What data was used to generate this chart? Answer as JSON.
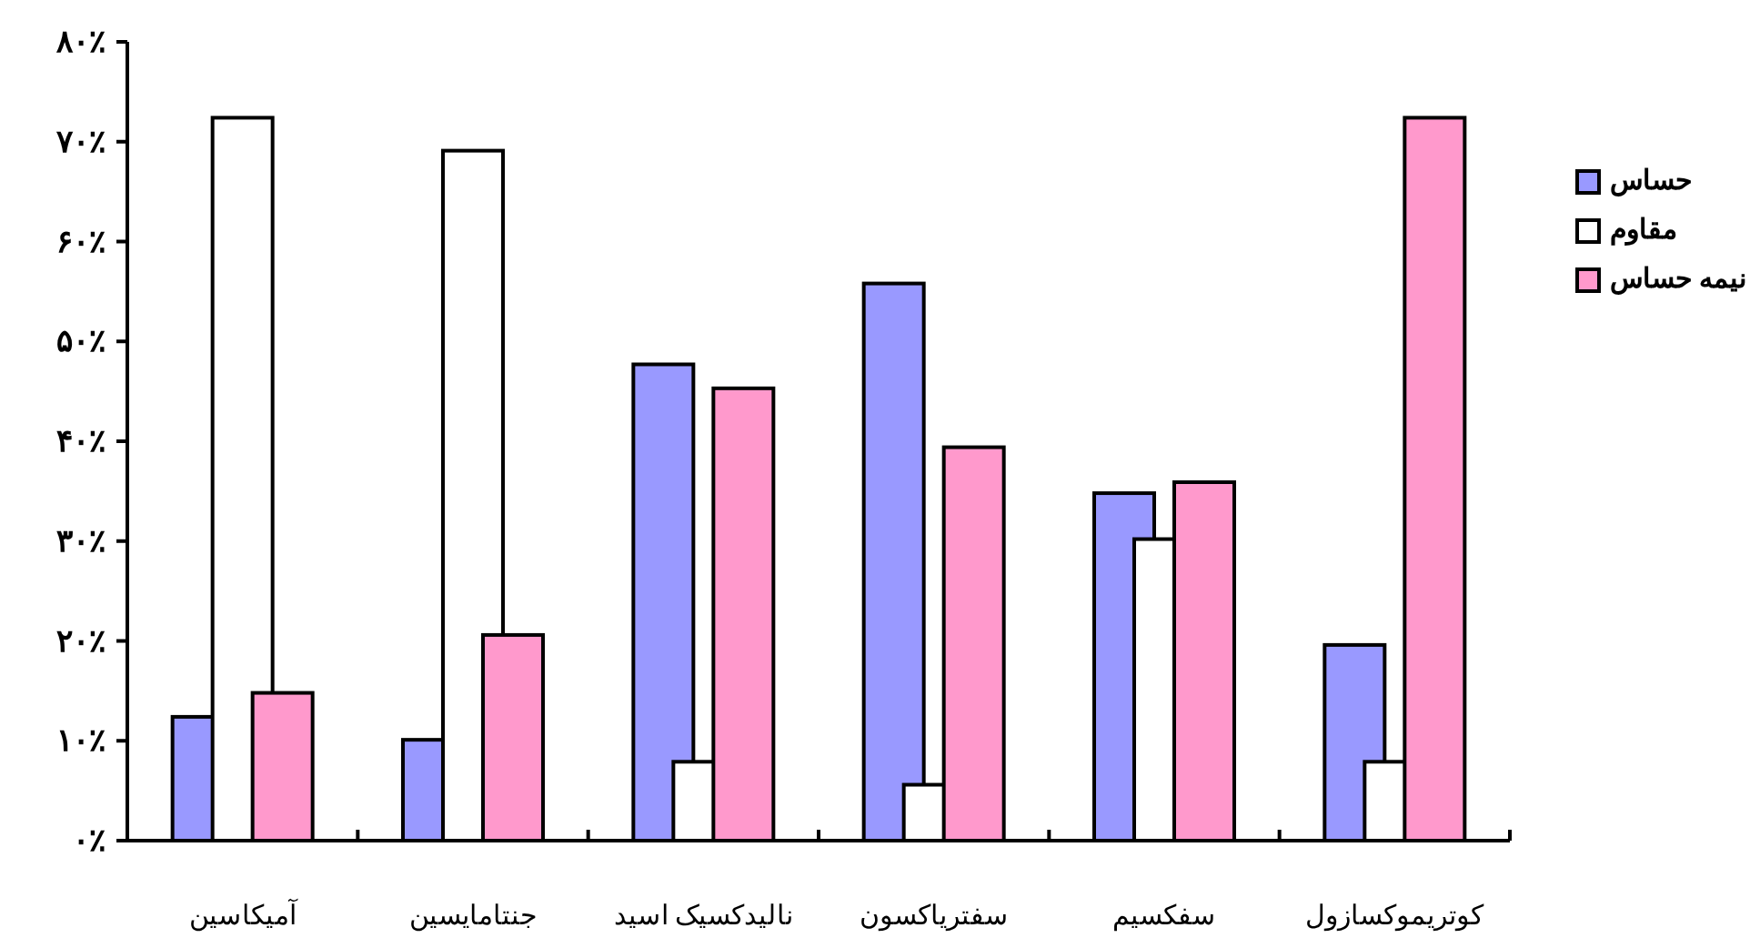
{
  "chart_data": {
    "type": "bar",
    "categories": [
      "آمیکاسین",
      "جنتامایسین",
      "نالیدکسیک اسید",
      "سفتریاکسون",
      "سفکسیم",
      "کوتریموکسازول"
    ],
    "series": [
      {
        "name": "حساس",
        "color": "#9999ff",
        "values": [
          12.4,
          10.1,
          47.7,
          55.8,
          34.8,
          19.6
        ]
      },
      {
        "name": "مقاوم",
        "color": "#ffffff",
        "values": [
          72.4,
          69.1,
          7.9,
          5.6,
          30.2,
          7.9
        ]
      },
      {
        "name": "نیمه حساس",
        "color": "#ff99cc",
        "values": [
          14.8,
          20.6,
          45.3,
          39.4,
          35.9,
          72.4
        ]
      }
    ],
    "ylim": [
      0,
      80
    ],
    "yticks": [
      {
        "value": 0,
        "label": "۰٪"
      },
      {
        "value": 10,
        "label": "۱۰٪"
      },
      {
        "value": 20,
        "label": "۲۰٪"
      },
      {
        "value": 30,
        "label": "۳۰٪"
      },
      {
        "value": 40,
        "label": "۴۰٪"
      },
      {
        "value": 50,
        "label": "۵۰٪"
      },
      {
        "value": 60,
        "label": "۶۰٪"
      },
      {
        "value": 70,
        "label": "۷۰٪"
      },
      {
        "value": 80,
        "label": "۸۰٪"
      }
    ],
    "legend": "right"
  }
}
